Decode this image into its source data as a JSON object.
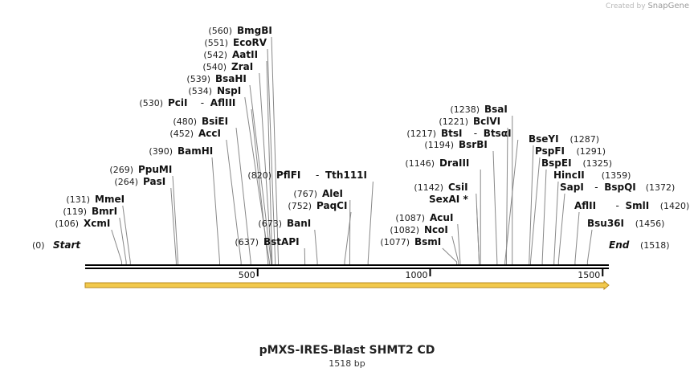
{
  "credit": {
    "prefix": "Created by",
    "brand": "SnapGene"
  },
  "map": {
    "title": "pMXS-IRES-Blast SHMT2 CD",
    "length_label": "1518 bp",
    "length": 1518,
    "start_label": "Start",
    "start_pos": "(0)",
    "end_label": "End",
    "end_pos": "(1518)",
    "ticks": [
      {
        "pos": 500,
        "label": "500"
      },
      {
        "pos": 1000,
        "label": "1000"
      },
      {
        "pos": 1500,
        "label": "1500"
      }
    ],
    "feature_color": "#f2c94c",
    "sites": [
      {
        "pos": "(131)",
        "name": "MmeI",
        "bp": 131,
        "side": "left"
      },
      {
        "pos": "(119)",
        "name": "BmrI",
        "bp": 119,
        "side": "left"
      },
      {
        "pos": "(106)",
        "name": "XcmI",
        "bp": 106,
        "side": "left"
      },
      {
        "pos": "(269)",
        "name": "PpuMI",
        "bp": 269,
        "side": "left"
      },
      {
        "pos": "(264)",
        "name": "PasI",
        "bp": 264,
        "side": "left"
      },
      {
        "pos": "(390)",
        "name": "BamHI",
        "bp": 390,
        "side": "left"
      },
      {
        "pos": "(480)",
        "name": "BsiEI",
        "bp": 480,
        "side": "left"
      },
      {
        "pos": "(452)",
        "name": "AccI",
        "bp": 452,
        "side": "left"
      },
      {
        "pos": "(530)",
        "name": "PciI",
        "name2": "AflIII",
        "bp": 530,
        "side": "left"
      },
      {
        "pos": "(534)",
        "name": "NspI",
        "bp": 534,
        "side": "left"
      },
      {
        "pos": "(539)",
        "name": "BsaHI",
        "bp": 539,
        "side": "left"
      },
      {
        "pos": "(540)",
        "name": "ZraI",
        "bp": 540,
        "side": "left"
      },
      {
        "pos": "(542)",
        "name": "AatII",
        "bp": 542,
        "side": "left"
      },
      {
        "pos": "(551)",
        "name": "EcoRV",
        "bp": 551,
        "side": "left"
      },
      {
        "pos": "(560)",
        "name": "BmgBI",
        "bp": 560,
        "side": "left"
      },
      {
        "pos": "(637)",
        "name": "BstAPI",
        "bp": 637,
        "side": "left"
      },
      {
        "pos": "(673)",
        "name": "BanI",
        "bp": 673,
        "side": "left"
      },
      {
        "pos": "(752)",
        "name": "PaqCI",
        "bp": 752,
        "side": "left"
      },
      {
        "pos": "(767)",
        "name": "AleI",
        "bp": 767,
        "side": "left"
      },
      {
        "pos": "(820)",
        "name": "PflFI",
        "name2": "Tth111I",
        "bp": 820,
        "side": "left"
      },
      {
        "pos": "(1077)",
        "name": "BsmI",
        "bp": 1077,
        "side": "left"
      },
      {
        "pos": "(1082)",
        "name": "NcoI",
        "bp": 1082,
        "side": "left"
      },
      {
        "pos": "(1087)",
        "name": "AcuI",
        "bp": 1087,
        "side": "left"
      },
      {
        "pos": "",
        "name": "SexAI *",
        "bp": 1142,
        "side": "left"
      },
      {
        "pos": "(1142)",
        "name": "CsiI",
        "bp": 1142,
        "side": "left"
      },
      {
        "pos": "(1146)",
        "name": "DraIII",
        "bp": 1146,
        "side": "left"
      },
      {
        "pos": "(1194)",
        "name": "BsrBI",
        "bp": 1194,
        "side": "left"
      },
      {
        "pos": "(1217)",
        "name": "BtsI",
        "name2": "BtsαI",
        "bp": 1217,
        "side": "left"
      },
      {
        "pos": "(1221)",
        "name": "BclVI",
        "bp": 1221,
        "side": "left"
      },
      {
        "pos": "(1238)",
        "name": "BsaI",
        "bp": 1238,
        "side": "left"
      },
      {
        "pos": "(1287)",
        "name": "BseYI",
        "bp": 1287,
        "side": "right"
      },
      {
        "pos": "(1291)",
        "name": "PspFI",
        "bp": 1291,
        "side": "right"
      },
      {
        "pos": "(1325)",
        "name": "BspEI",
        "bp": 1325,
        "side": "right"
      },
      {
        "pos": "(1359)",
        "name": "HincII",
        "bp": 1359,
        "side": "right"
      },
      {
        "pos": "(1372)",
        "name": "SapI",
        "name2": "BspQI",
        "bp": 1372,
        "side": "right"
      },
      {
        "pos": "(1420)",
        "name": "AflII",
        "name2": "SmlI",
        "bp": 1420,
        "side": "right"
      },
      {
        "pos": "(1456)",
        "name": "Bsu36I",
        "bp": 1456,
        "side": "right"
      }
    ]
  }
}
